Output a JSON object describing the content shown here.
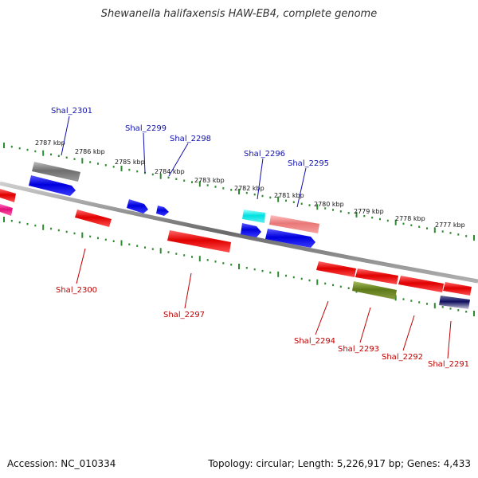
{
  "title": "Shewanella halifaxensis HAW-EB4, complete genome",
  "footer": {
    "accession": "Accession: NC_010334",
    "summary": "Topology: circular; Length: 5,226,917 bp; Genes: 4,433"
  },
  "colors": {
    "backbone": "#808080",
    "tick": "#2e8b2e",
    "top_label": "#1010b0",
    "bottom_label": "#c00000",
    "forward": "#0000ee",
    "reverse": "#ee0000"
  },
  "kbp_labels": [
    "2787 kbp",
    "2786 kbp",
    "2785 kbp",
    "2784 kbp",
    "2783 kbp",
    "2782 kbp",
    "2781 kbp",
    "2780 kbp",
    "2779 kbp",
    "2778 kbp",
    "2777 kbp"
  ],
  "genes_top": [
    "Shal_2301",
    "Shal_2299",
    "Shal_2298",
    "Shal_2296",
    "Shal_2295"
  ],
  "genes_bottom": [
    "Shal_2300",
    "Shal_2297",
    "Shal_2294",
    "Shal_2293",
    "Shal_2292",
    "Shal_2291"
  ]
}
